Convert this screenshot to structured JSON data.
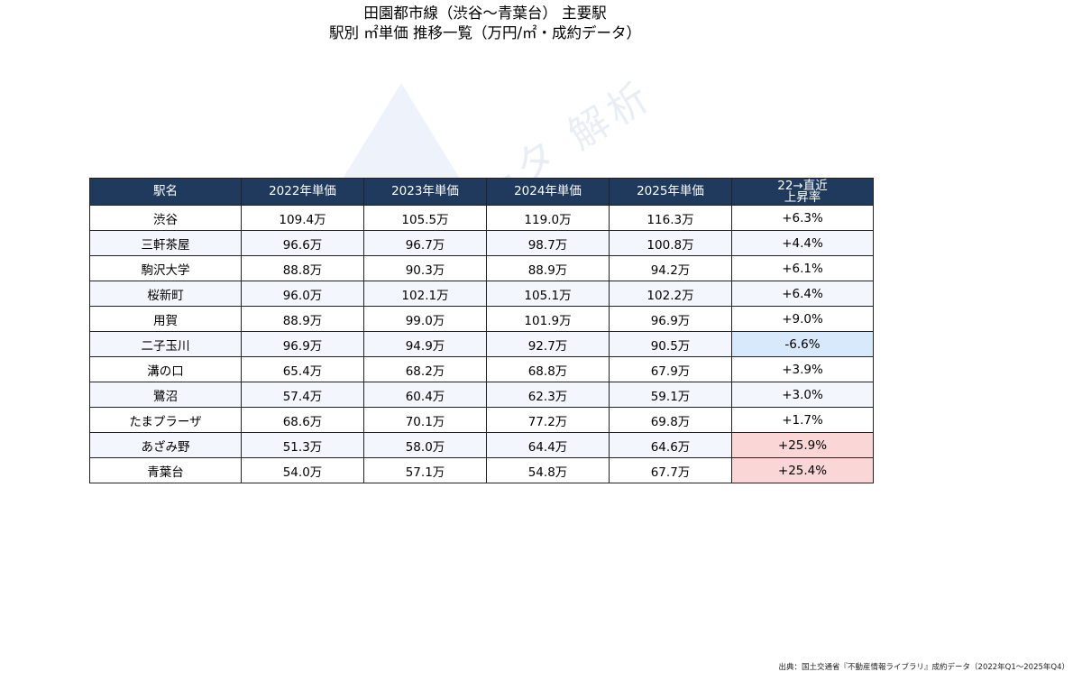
{
  "title": {
    "line1": "田園都市線（渋谷〜青葉台） 主要駅",
    "line2": "駅別 ㎡単価 推移一覧（万円/㎡・成約データ）"
  },
  "watermark": "© 不動産データ 解析",
  "colors": {
    "header_bg": "#1f3a5c",
    "decline_highlight": "#d7e9fa",
    "high_growth_highlight": "#fbd6d6"
  },
  "chart_data": {
    "type": "table",
    "columns": [
      "駅名",
      "2022年単価",
      "2023年単価",
      "2024年単価",
      "2025年単価",
      "22→直近\n上昇率"
    ],
    "rows": [
      {
        "station": "渋谷",
        "v2022": "109.4万",
        "v2023": "105.5万",
        "v2024": "119.0万",
        "v2025": "116.3万",
        "change": "+6.3%",
        "highlight": "none"
      },
      {
        "station": "三軒茶屋",
        "v2022": "96.6万",
        "v2023": "96.7万",
        "v2024": "98.7万",
        "v2025": "100.8万",
        "change": "+4.4%",
        "highlight": "none"
      },
      {
        "station": "駒沢大学",
        "v2022": "88.8万",
        "v2023": "90.3万",
        "v2024": "88.9万",
        "v2025": "94.2万",
        "change": "+6.1%",
        "highlight": "none"
      },
      {
        "station": "桜新町",
        "v2022": "96.0万",
        "v2023": "102.1万",
        "v2024": "105.1万",
        "v2025": "102.2万",
        "change": "+6.4%",
        "highlight": "none"
      },
      {
        "station": "用賀",
        "v2022": "88.9万",
        "v2023": "99.0万",
        "v2024": "101.9万",
        "v2025": "96.9万",
        "change": "+9.0%",
        "highlight": "none"
      },
      {
        "station": "二子玉川",
        "v2022": "96.9万",
        "v2023": "94.9万",
        "v2024": "92.7万",
        "v2025": "90.5万",
        "change": "-6.6%",
        "highlight": "decline"
      },
      {
        "station": "溝の口",
        "v2022": "65.4万",
        "v2023": "68.2万",
        "v2024": "68.8万",
        "v2025": "67.9万",
        "change": "+3.9%",
        "highlight": "none"
      },
      {
        "station": "鷺沼",
        "v2022": "57.4万",
        "v2023": "60.4万",
        "v2024": "62.3万",
        "v2025": "59.1万",
        "change": "+3.0%",
        "highlight": "none"
      },
      {
        "station": "たまプラーザ",
        "v2022": "68.6万",
        "v2023": "70.1万",
        "v2024": "77.2万",
        "v2025": "69.8万",
        "change": "+1.7%",
        "highlight": "none"
      },
      {
        "station": "あざみ野",
        "v2022": "51.3万",
        "v2023": "58.0万",
        "v2024": "64.4万",
        "v2025": "64.6万",
        "change": "+25.9%",
        "highlight": "high"
      },
      {
        "station": "青葉台",
        "v2022": "54.0万",
        "v2023": "57.1万",
        "v2024": "54.8万",
        "v2025": "67.7万",
        "change": "+25.4%",
        "highlight": "high"
      }
    ]
  },
  "source": "出典：国土交通省『不動産情報ライブラリ』成約データ（2022年Q1〜2025年Q4）"
}
